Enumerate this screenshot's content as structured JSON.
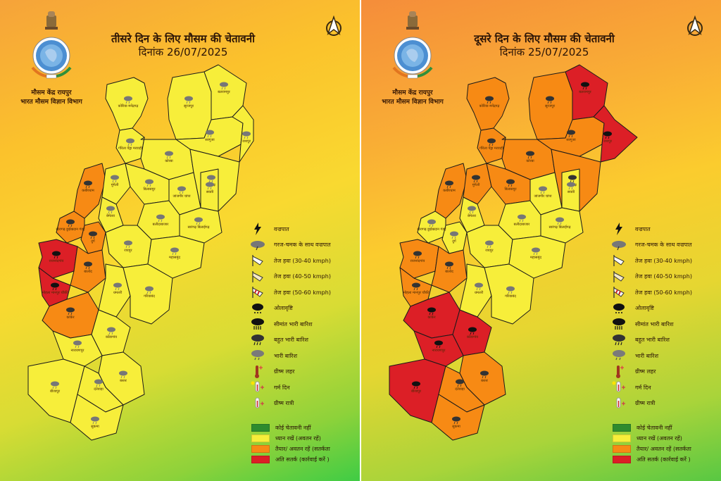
{
  "colors": {
    "no_warning": "#2e8b2e",
    "yellow": "#f7ee3a",
    "orange": "#f78a14",
    "red": "#dc1f26",
    "border": "#1a1a1a"
  },
  "organization": {
    "line1": "मौसम केंद्र रायपुर",
    "line2": "भारत मौसम विज्ञान विभाग"
  },
  "panels": [
    {
      "id": "day3",
      "title": "तीसरे दिन के लिए मौसम की चेतावनी",
      "date_label": "दिनांक 26/07/2025",
      "districts": [
        {
          "name": "कोरिया-मनेंद्रगढ़",
          "level": "yellow"
        },
        {
          "name": "सूरजपुर",
          "level": "yellow"
        },
        {
          "name": "बलरामपुर",
          "level": "yellow"
        },
        {
          "name": "सरगुजा",
          "level": "yellow"
        },
        {
          "name": "जशपुर",
          "level": "yellow"
        },
        {
          "name": "गौरेला पेंड्रा मरवाही",
          "level": "yellow"
        },
        {
          "name": "कोरबा",
          "level": "yellow"
        },
        {
          "name": "रायगढ़",
          "level": "yellow"
        },
        {
          "name": "कबीरधाम",
          "level": "orange"
        },
        {
          "name": "मुंगेली",
          "level": "yellow"
        },
        {
          "name": "बिलासपुर",
          "level": "yellow"
        },
        {
          "name": "जांजगीर चांपा",
          "level": "yellow"
        },
        {
          "name": "सक्ती",
          "level": "yellow"
        },
        {
          "name": "बेमेतरा",
          "level": "yellow"
        },
        {
          "name": "बलौदाबाजार",
          "level": "yellow"
        },
        {
          "name": "सारंगढ़ बिलाईगढ़",
          "level": "yellow"
        },
        {
          "name": "खैरागढ़ छुईखदान गंडई",
          "level": "orange"
        },
        {
          "name": "दुर्ग",
          "level": "orange"
        },
        {
          "name": "रायपुर",
          "level": "yellow"
        },
        {
          "name": "महासमुंद",
          "level": "yellow"
        },
        {
          "name": "राजनांदगांव",
          "level": "red"
        },
        {
          "name": "बालोद",
          "level": "orange"
        },
        {
          "name": "मोहला मानपुर चौकी",
          "level": "red"
        },
        {
          "name": "धमतरी",
          "level": "yellow"
        },
        {
          "name": "गरियाबंद",
          "level": "yellow"
        },
        {
          "name": "कांकेर",
          "level": "orange"
        },
        {
          "name": "कोंडागांव",
          "level": "yellow"
        },
        {
          "name": "नारायणपुर",
          "level": "yellow"
        },
        {
          "name": "बीजापुर",
          "level": "yellow"
        },
        {
          "name": "बस्तर",
          "level": "yellow"
        },
        {
          "name": "दंतेवाड़ा",
          "level": "yellow"
        },
        {
          "name": "सुकमा",
          "level": "yellow"
        }
      ]
    },
    {
      "id": "day2",
      "title": "दूसरे दिन के लिए मौसम की चेतावनी",
      "date_label": "दिनांक 25/07/2025",
      "districts": [
        {
          "name": "कोरिया-मनेंद्रगढ़",
          "level": "orange"
        },
        {
          "name": "सूरजपुर",
          "level": "orange"
        },
        {
          "name": "बलरामपुर",
          "level": "red"
        },
        {
          "name": "सरगुजा",
          "level": "orange"
        },
        {
          "name": "जशपुर",
          "level": "red"
        },
        {
          "name": "गौरेला पेंड्रा मरवाही",
          "level": "orange"
        },
        {
          "name": "कोरबा",
          "level": "orange"
        },
        {
          "name": "रायगढ़",
          "level": "orange"
        },
        {
          "name": "कबीरधाम",
          "level": "orange"
        },
        {
          "name": "मुंगेली",
          "level": "orange"
        },
        {
          "name": "बिलासपुर",
          "level": "orange"
        },
        {
          "name": "जांजगीर चांपा",
          "level": "yellow"
        },
        {
          "name": "सक्ती",
          "level": "yellow"
        },
        {
          "name": "बेमेतरा",
          "level": "yellow"
        },
        {
          "name": "बलौदाबाजार",
          "level": "yellow"
        },
        {
          "name": "सारंगढ़ बिलाईगढ़",
          "level": "yellow"
        },
        {
          "name": "खैरागढ़ छुईखदान गंडई",
          "level": "yellow"
        },
        {
          "name": "दुर्ग",
          "level": "yellow"
        },
        {
          "name": "रायपुर",
          "level": "yellow"
        },
        {
          "name": "महासमुंद",
          "level": "yellow"
        },
        {
          "name": "राजनांदगांव",
          "level": "orange"
        },
        {
          "name": "बालोद",
          "level": "orange"
        },
        {
          "name": "मोहला मानपुर चौकी",
          "level": "orange"
        },
        {
          "name": "धमतरी",
          "level": "yellow"
        },
        {
          "name": "गरियाबंद",
          "level": "yellow"
        },
        {
          "name": "कांकेर",
          "level": "red"
        },
        {
          "name": "कोंडागांव",
          "level": "red"
        },
        {
          "name": "नारायणपुर",
          "level": "red"
        },
        {
          "name": "बीजापुर",
          "level": "red"
        },
        {
          "name": "बस्तर",
          "level": "orange"
        },
        {
          "name": "दंतेवाड़ा",
          "level": "orange"
        },
        {
          "name": "सुकमा",
          "level": "orange"
        }
      ]
    }
  ],
  "legend": {
    "icons": [
      {
        "icon": "lightning-icon",
        "label": "वज्रपात"
      },
      {
        "icon": "thunderstorm-cloud-icon",
        "label": "गरज-चमक के साथ वज्रपात"
      },
      {
        "icon": "windsock-30-40-icon",
        "label": "तेज हवा (30-40 kmph)"
      },
      {
        "icon": "windsock-40-50-icon",
        "label": "तेज हवा (40-50 kmph)"
      },
      {
        "icon": "windsock-50-60-icon",
        "label": "तेज हवा (50-60 kmph)"
      },
      {
        "icon": "hail-icon",
        "label": "ओलावृष्टि"
      },
      {
        "icon": "extremely-heavy-rain-icon",
        "label": "सीमांत भारी बारिश"
      },
      {
        "icon": "very-heavy-rain-icon",
        "label": "बहुत भारी बारिश"
      },
      {
        "icon": "heavy-rain-icon",
        "label": "भारी बारिश"
      },
      {
        "icon": "heat-wave-icon",
        "label": "ग्रीष्म लहर"
      },
      {
        "icon": "warm-day-icon",
        "label": "गर्म दिन"
      },
      {
        "icon": "warm-night-icon",
        "label": "ग्रीष्म रात्री"
      }
    ],
    "levels": [
      {
        "key": "no_warning",
        "label": "कोई चेतावनी नहीं",
        "color": "#2e8b2e"
      },
      {
        "key": "yellow",
        "label": "ध्यान रखें (अवतन रहें)",
        "color": "#f7ee3a"
      },
      {
        "key": "orange",
        "label": "तैयार/ अवतन रहें (सतर्कता",
        "color": "#f78a14"
      },
      {
        "key": "red",
        "label": "अति सतर्क (कार्रवाई करें )",
        "color": "#dc1f26"
      }
    ]
  }
}
